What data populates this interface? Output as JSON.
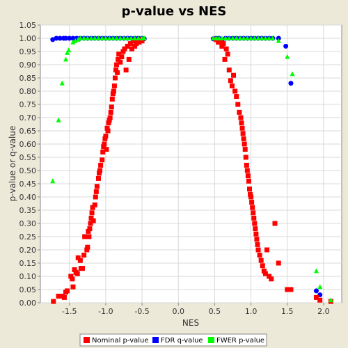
{
  "chart_data": {
    "type": "scatter",
    "title": "p-value vs NES",
    "xlabel": "NES",
    "ylabel": "p-value or q-value",
    "xlim": [
      -1.9,
      2.25
    ],
    "ylim": [
      0,
      1.05
    ],
    "x_ticks": [
      -1.5,
      -1.0,
      -0.5,
      0.0,
      0.5,
      1.0,
      1.5,
      2.0
    ],
    "x_tick_labels": [
      "-1.5",
      "-1.0",
      "-0.5",
      "0.0",
      "0.5",
      "1.0",
      "1.5",
      "2.0"
    ],
    "y_ticks": [
      0.0,
      0.05,
      0.1,
      0.15,
      0.2,
      0.25,
      0.3,
      0.35,
      0.4,
      0.45,
      0.5,
      0.55,
      0.6,
      0.65,
      0.7,
      0.75,
      0.8,
      0.85,
      0.9,
      0.95,
      1.0,
      1.05
    ],
    "y_tick_labels": [
      "0.00",
      "0.05",
      "0.10",
      "0.15",
      "0.20",
      "0.25",
      "0.30",
      "0.35",
      "0.40",
      "0.45",
      "0.50",
      "0.55",
      "0.60",
      "0.65",
      "0.70",
      "0.75",
      "0.80",
      "0.85",
      "0.90",
      "0.95",
      "1.00",
      "1.05"
    ],
    "grid": true,
    "legend_position": "bottom",
    "series": [
      {
        "name": "Nominal p-value",
        "marker": "square",
        "color": "#ff0000",
        "points": [
          [
            -1.72,
            0.005
          ],
          [
            -1.65,
            0.025
          ],
          [
            -1.6,
            0.025
          ],
          [
            -1.57,
            0.02
          ],
          [
            -1.55,
            0.04
          ],
          [
            -1.53,
            0.045
          ],
          [
            -1.48,
            0.1
          ],
          [
            -1.46,
            0.09
          ],
          [
            -1.45,
            0.06
          ],
          [
            -1.43,
            0.125
          ],
          [
            -1.41,
            0.115
          ],
          [
            -1.39,
            0.11
          ],
          [
            -1.38,
            0.17
          ],
          [
            -1.35,
            0.16
          ],
          [
            -1.34,
            0.13
          ],
          [
            -1.32,
            0.13
          ],
          [
            -1.3,
            0.18
          ],
          [
            -1.29,
            0.25
          ],
          [
            -1.26,
            0.2
          ],
          [
            -1.25,
            0.21
          ],
          [
            -1.24,
            0.27
          ],
          [
            -1.23,
            0.25
          ],
          [
            -1.22,
            0.28
          ],
          [
            -1.21,
            0.3
          ],
          [
            -1.2,
            0.32
          ],
          [
            -1.19,
            0.34
          ],
          [
            -1.18,
            0.36
          ],
          [
            -1.17,
            0.31
          ],
          [
            -1.15,
            0.37
          ],
          [
            -1.14,
            0.4
          ],
          [
            -1.13,
            0.42
          ],
          [
            -1.12,
            0.44
          ],
          [
            -1.1,
            0.47
          ],
          [
            -1.09,
            0.49
          ],
          [
            -1.08,
            0.5
          ],
          [
            -1.07,
            0.52
          ],
          [
            -1.05,
            0.54
          ],
          [
            -1.04,
            0.57
          ],
          [
            -1.03,
            0.59
          ],
          [
            -1.02,
            0.6
          ],
          [
            -1.01,
            0.62
          ],
          [
            -1.0,
            0.63
          ],
          [
            -0.99,
            0.58
          ],
          [
            -0.98,
            0.66
          ],
          [
            -0.97,
            0.65
          ],
          [
            -0.96,
            0.68
          ],
          [
            -0.95,
            0.69
          ],
          [
            -0.94,
            0.7
          ],
          [
            -0.93,
            0.72
          ],
          [
            -0.92,
            0.74
          ],
          [
            -0.91,
            0.77
          ],
          [
            -0.9,
            0.79
          ],
          [
            -0.89,
            0.8
          ],
          [
            -0.88,
            0.82
          ],
          [
            -0.87,
            0.85
          ],
          [
            -0.86,
            0.88
          ],
          [
            -0.85,
            0.9
          ],
          [
            -0.84,
            0.87
          ],
          [
            -0.83,
            0.92
          ],
          [
            -0.82,
            0.94
          ],
          [
            -0.8,
            0.91
          ],
          [
            -0.78,
            0.93
          ],
          [
            -0.76,
            0.95
          ],
          [
            -0.74,
            0.96
          ],
          [
            -0.72,
            0.88
          ],
          [
            -0.7,
            0.97
          ],
          [
            -0.68,
            0.92
          ],
          [
            -0.66,
            0.98
          ],
          [
            -0.64,
            0.96
          ],
          [
            -0.62,
            0.99
          ],
          [
            -0.6,
            0.97
          ],
          [
            -0.58,
            0.98
          ],
          [
            -0.56,
            0.99
          ],
          [
            -0.54,
            0.985
          ],
          [
            -0.52,
            0.995
          ],
          [
            -0.5,
            0.99
          ],
          [
            0.52,
            0.995
          ],
          [
            0.55,
            0.985
          ],
          [
            0.58,
            0.99
          ],
          [
            0.6,
            0.97
          ],
          [
            0.62,
            0.98
          ],
          [
            0.64,
            0.92
          ],
          [
            0.66,
            0.96
          ],
          [
            0.68,
            0.94
          ],
          [
            0.7,
            0.88
          ],
          [
            0.72,
            0.84
          ],
          [
            0.74,
            0.82
          ],
          [
            0.76,
            0.86
          ],
          [
            0.78,
            0.8
          ],
          [
            0.8,
            0.78
          ],
          [
            0.82,
            0.75
          ],
          [
            0.84,
            0.72
          ],
          [
            0.86,
            0.7
          ],
          [
            0.87,
            0.68
          ],
          [
            0.88,
            0.66
          ],
          [
            0.89,
            0.64
          ],
          [
            0.9,
            0.62
          ],
          [
            0.91,
            0.6
          ],
          [
            0.92,
            0.58
          ],
          [
            0.93,
            0.55
          ],
          [
            0.94,
            0.52
          ],
          [
            0.95,
            0.5
          ],
          [
            0.96,
            0.48
          ],
          [
            0.97,
            0.46
          ],
          [
            0.98,
            0.43
          ],
          [
            0.99,
            0.41
          ],
          [
            1.0,
            0.4
          ],
          [
            1.01,
            0.38
          ],
          [
            1.02,
            0.36
          ],
          [
            1.03,
            0.34
          ],
          [
            1.04,
            0.32
          ],
          [
            1.05,
            0.3
          ],
          [
            1.06,
            0.28
          ],
          [
            1.07,
            0.26
          ],
          [
            1.08,
            0.24
          ],
          [
            1.09,
            0.22
          ],
          [
            1.1,
            0.2
          ],
          [
            1.12,
            0.18
          ],
          [
            1.14,
            0.16
          ],
          [
            1.16,
            0.14
          ],
          [
            1.18,
            0.12
          ],
          [
            1.2,
            0.11
          ],
          [
            1.22,
            0.2
          ],
          [
            1.25,
            0.1
          ],
          [
            1.28,
            0.09
          ],
          [
            1.33,
            0.3
          ],
          [
            1.38,
            0.15
          ],
          [
            1.5,
            0.05
          ],
          [
            1.55,
            0.05
          ],
          [
            1.9,
            0.02
          ],
          [
            1.95,
            0.01
          ],
          [
            2.1,
            0.005
          ]
        ]
      },
      {
        "name": "FDR q-value",
        "marker": "circle",
        "color": "#0000ff",
        "points": [
          [
            -1.73,
            0.995
          ],
          [
            -1.68,
            1.0
          ],
          [
            -1.63,
            1.0
          ],
          [
            -1.58,
            1.0
          ],
          [
            -1.55,
            1.0
          ],
          [
            -1.5,
            1.0
          ],
          [
            -1.45,
            1.0
          ],
          [
            -1.4,
            1.0
          ],
          [
            -1.35,
            1.0
          ],
          [
            -1.3,
            1.0
          ],
          [
            -1.25,
            1.0
          ],
          [
            -1.2,
            1.0
          ],
          [
            -1.15,
            1.0
          ],
          [
            -1.1,
            1.0
          ],
          [
            -1.05,
            1.0
          ],
          [
            -1.0,
            1.0
          ],
          [
            -0.95,
            1.0
          ],
          [
            -0.9,
            1.0
          ],
          [
            -0.85,
            1.0
          ],
          [
            -0.8,
            1.0
          ],
          [
            -0.75,
            1.0
          ],
          [
            -0.7,
            1.0
          ],
          [
            -0.65,
            1.0
          ],
          [
            -0.6,
            1.0
          ],
          [
            -0.55,
            1.0
          ],
          [
            -0.5,
            1.0
          ],
          [
            -0.47,
            0.998
          ],
          [
            0.48,
            0.998
          ],
          [
            0.52,
            1.0
          ],
          [
            0.56,
            1.0
          ],
          [
            0.6,
            0.99
          ],
          [
            0.65,
            1.0
          ],
          [
            0.7,
            1.0
          ],
          [
            0.75,
            1.0
          ],
          [
            0.8,
            1.0
          ],
          [
            0.85,
            1.0
          ],
          [
            0.9,
            1.0
          ],
          [
            0.95,
            1.0
          ],
          [
            1.0,
            1.0
          ],
          [
            1.05,
            1.0
          ],
          [
            1.1,
            1.0
          ],
          [
            1.15,
            1.0
          ],
          [
            1.2,
            1.0
          ],
          [
            1.25,
            1.0
          ],
          [
            1.3,
            1.0
          ],
          [
            1.38,
            1.0
          ],
          [
            1.48,
            0.97
          ],
          [
            1.55,
            0.83
          ],
          [
            1.9,
            0.045
          ],
          [
            1.95,
            0.03
          ],
          [
            2.1,
            0.005
          ]
        ]
      },
      {
        "name": "FWER p-value",
        "marker": "triangle",
        "color": "#00ff00",
        "points": [
          [
            -1.73,
            0.46
          ],
          [
            -1.65,
            0.69
          ],
          [
            -1.6,
            0.83
          ],
          [
            -1.55,
            0.92
          ],
          [
            -1.53,
            0.945
          ],
          [
            -1.51,
            0.955
          ],
          [
            -1.45,
            0.985
          ],
          [
            -1.42,
            0.99
          ],
          [
            -1.38,
            0.995
          ],
          [
            -1.35,
            1.0
          ],
          [
            -1.3,
            1.0
          ],
          [
            -1.25,
            1.0
          ],
          [
            -1.2,
            1.0
          ],
          [
            -1.15,
            1.0
          ],
          [
            -1.1,
            1.0
          ],
          [
            -1.05,
            1.0
          ],
          [
            -1.0,
            1.0
          ],
          [
            -0.95,
            1.0
          ],
          [
            -0.9,
            1.0
          ],
          [
            -0.85,
            1.0
          ],
          [
            -0.8,
            1.0
          ],
          [
            -0.75,
            1.0
          ],
          [
            -0.7,
            1.0
          ],
          [
            -0.65,
            1.0
          ],
          [
            -0.6,
            1.0
          ],
          [
            -0.55,
            1.0
          ],
          [
            -0.5,
            1.0
          ],
          [
            -0.47,
            1.0
          ],
          [
            0.48,
            1.0
          ],
          [
            0.52,
            1.0
          ],
          [
            0.56,
            1.0
          ],
          [
            0.6,
            1.0
          ],
          [
            0.65,
            1.0
          ],
          [
            0.7,
            1.0
          ],
          [
            0.75,
            1.0
          ],
          [
            0.8,
            1.0
          ],
          [
            0.85,
            1.0
          ],
          [
            0.9,
            1.0
          ],
          [
            0.95,
            1.0
          ],
          [
            1.0,
            1.0
          ],
          [
            1.05,
            1.0
          ],
          [
            1.1,
            1.0
          ],
          [
            1.15,
            1.0
          ],
          [
            1.2,
            1.0
          ],
          [
            1.25,
            1.0
          ],
          [
            1.3,
            1.0
          ],
          [
            1.38,
            0.99
          ],
          [
            1.5,
            0.93
          ],
          [
            1.57,
            0.865
          ],
          [
            1.9,
            0.12
          ],
          [
            1.95,
            0.06
          ],
          [
            2.1,
            0.01
          ]
        ]
      }
    ]
  }
}
